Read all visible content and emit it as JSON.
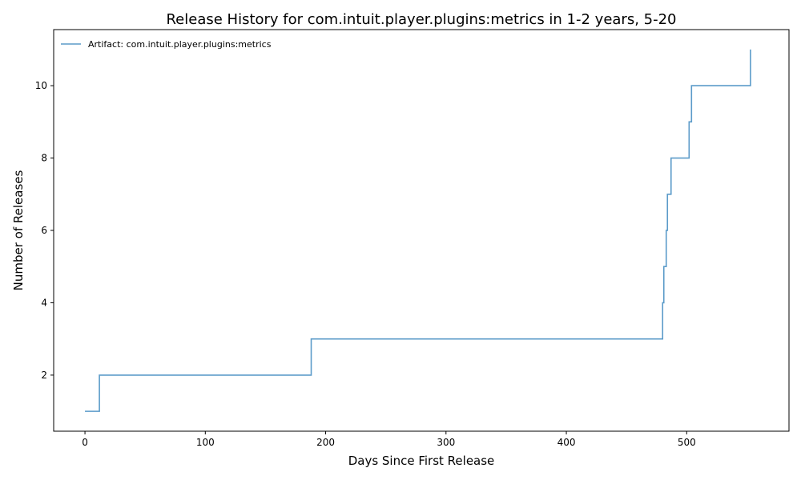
{
  "chart_data": {
    "type": "line",
    "step": true,
    "title": "Release History for com.intuit.player.plugins:metrics in 1-2 years, 5-20",
    "xlabel": "Days Since First Release",
    "ylabel": "Number of Releases",
    "xlim": [
      -26,
      585
    ],
    "ylim": [
      0.45,
      11.55
    ],
    "xticks": [
      0,
      100,
      200,
      300,
      400,
      500
    ],
    "yticks": [
      2,
      4,
      6,
      8,
      10
    ],
    "grid": false,
    "legend_position": "top-left",
    "series": [
      {
        "name": "Artifact: com.intuit.player.plugins:metrics",
        "color": "#5b9bc9",
        "x": [
          0,
          12,
          188,
          480,
          481,
          483,
          484,
          487,
          502,
          504,
          553
        ],
        "y": [
          1,
          2,
          3,
          4,
          5,
          6,
          7,
          8,
          9,
          10,
          11
        ]
      }
    ]
  }
}
